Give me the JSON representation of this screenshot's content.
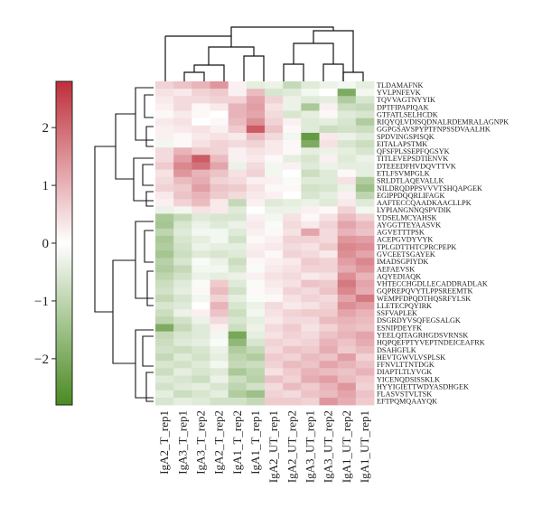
{
  "chart_data": {
    "type": "heatmap",
    "title": "",
    "xlabel": "",
    "ylabel": "",
    "columns": [
      "IgA2_T_rep1",
      "IgA3_T_rep1",
      "IgA3_T_rep2",
      "IgA2_T_rep2",
      "IgA1_T_rep2",
      "IgA1_T_rep1",
      "IgA2_UT_rep1",
      "IgA2_UT_rep2",
      "IgA3_UT_rep1",
      "IgA3_UT_rep2",
      "IgA1_UT_rep2",
      "IgA1_UT_rep1"
    ],
    "rows": [
      "TLDAMAFNK",
      "YVLPNFEVK",
      "TQVVAGTNYYIK",
      "DPTFIPAPIQAK",
      "GTFATLSELHCDK",
      "RIQYQLVDISQDNALRDEMRALAGNPK",
      "GGPGSAVSPYPTFNPSSDVAALHK",
      "SPDVINGSPISQK",
      "EITALAPSTMK",
      "QFSFPLSSEPFQGSYK",
      "TITLEVEPSDTIENVK",
      "DTEEEDFHVDQVTTVK",
      "ETLFSVMPGLK",
      "SRLDTLAQEVALLK",
      "NILDRQDPPSVVVTSHQAPGEK",
      "EGIPPDQQRLIFAGK",
      "AAFTECCQAADKAACLLPK",
      "LYPIANGNNQSPVDIK",
      "YDSELMCYAHSK",
      "AYGGTTEYAASVK",
      "AGVETTTPSK",
      "ACEPGVDYVYK",
      "TPLGDTTHTCPRCPEPK",
      "GVCEETSGAYEK",
      "IMADSGPIYDK",
      "AEFAEVSK",
      "AQYEDIAQK",
      "VHTECCHGDLLECADDRADLAK",
      "GQPREPQVYTLPPSREEMTK",
      "WEMPFDPQDTHQSRFYLSK",
      "LLETECPQYIRK",
      "SSFVAPLEK",
      "DSGRDYVSQFEGSALGK",
      "ESNIPDEYFK",
      "YEELQITAGRHGDSVRNSK",
      "HQPQEFPTYVEPTNDEICEAFRK",
      "DSAHGFLK",
      "HEVTGWVLVSPLSK",
      "FFNVLTTNTDGK",
      "DIAPTLTLYVGK",
      "YICENQDSISSKLK",
      "HYYIGIETTWDYASDHGEK",
      "FLASVSTVLTSK",
      "EFTPQMQAAYQK"
    ],
    "color_scale": {
      "min": -2.8,
      "max": 2.8,
      "low_color": "#4a8a22",
      "mid_color": "#ffffff",
      "high_color": "#be2e3a",
      "ticks": [
        -2,
        -1,
        0,
        1,
        2
      ]
    },
    "values": [
      [
        0.6,
        0.8,
        1.0,
        1.4,
        0.2,
        -0.4,
        -0.3,
        -0.9,
        -0.5,
        -0.3,
        -0.2,
        -0.4
      ],
      [
        0.4,
        0.3,
        0.6,
        0.7,
        0.2,
        0.9,
        -0.6,
        -0.5,
        -0.2,
        0.0,
        -2.0,
        -0.2
      ],
      [
        0.3,
        0.5,
        0.5,
        0.6,
        0.6,
        1.2,
        0.6,
        -0.3,
        -0.5,
        -0.4,
        -1.2,
        -0.6
      ],
      [
        0.2,
        0.5,
        0.1,
        0.3,
        1.0,
        1.3,
        0.4,
        -0.3,
        -1.3,
        0.2,
        -0.8,
        -0.9
      ],
      [
        0.1,
        0.3,
        0.1,
        0.0,
        1.0,
        1.2,
        0.5,
        -0.6,
        -0.4,
        0.1,
        -0.5,
        -0.6
      ],
      [
        0.3,
        0.4,
        0.0,
        0.1,
        0.9,
        1.5,
        0.6,
        0.2,
        -0.5,
        -0.4,
        -0.6,
        -1.2
      ],
      [
        0.2,
        0.3,
        0.4,
        0.2,
        0.7,
        2.2,
        0.8,
        0.1,
        -0.5,
        -0.8,
        -0.7,
        -0.8
      ],
      [
        0.2,
        0.1,
        0.3,
        0.4,
        0.3,
        0.9,
        0.5,
        -0.2,
        -2.4,
        0.3,
        -0.3,
        -0.5
      ],
      [
        -0.2,
        0.1,
        0.4,
        0.6,
        0.5,
        0.6,
        0.3,
        0.1,
        -2.0,
        0.4,
        -0.6,
        -0.8
      ],
      [
        0.5,
        1.0,
        0.7,
        0.6,
        0.2,
        0.4,
        0.3,
        0.1,
        -0.4,
        -0.3,
        -0.4,
        -0.6
      ],
      [
        0.5,
        1.3,
        2.2,
        0.9,
        0.2,
        0.3,
        0.1,
        -0.4,
        -0.6,
        0.2,
        -0.5,
        -0.3
      ],
      [
        0.7,
        1.6,
        1.9,
        1.2,
        -0.3,
        0.5,
        -0.2,
        0.2,
        -0.5,
        -0.3,
        -0.4,
        -0.4
      ],
      [
        0.4,
        1.4,
        1.0,
        0.8,
        0.4,
        0.6,
        -0.2,
        0.0,
        -0.8,
        -0.5,
        0.1,
        -0.4
      ],
      [
        0.5,
        0.9,
        1.1,
        0.6,
        0.5,
        0.2,
        0.2,
        -0.1,
        -0.5,
        -0.5,
        0.4,
        -1.2
      ],
      [
        0.6,
        0.7,
        1.3,
        0.8,
        0.7,
        0.4,
        0.1,
        0.1,
        -0.7,
        -0.6,
        -0.3,
        -1.5
      ],
      [
        0.3,
        0.8,
        1.0,
        0.7,
        0.5,
        0.3,
        0.2,
        0.0,
        -0.6,
        -0.4,
        0.2,
        -1.0
      ],
      [
        0.2,
        0.6,
        0.9,
        0.3,
        -0.9,
        0.2,
        -0.5,
        -0.4,
        -0.3,
        -0.5,
        0.3,
        -0.5
      ],
      [
        -0.3,
        -0.2,
        0.4,
        0.3,
        -0.5,
        0.0,
        -0.3,
        -0.3,
        0.2,
        0.1,
        0.6,
        -0.2
      ],
      [
        -1.3,
        -0.9,
        -0.5,
        -0.6,
        -0.6,
        0.2,
        -0.2,
        0.4,
        0.1,
        0.4,
        0.9,
        0.6
      ],
      [
        -1.4,
        -0.6,
        -0.3,
        -0.5,
        -0.3,
        0.3,
        -0.1,
        0.5,
        0.3,
        0.6,
        1.2,
        0.9
      ],
      [
        -1.0,
        -0.5,
        -0.2,
        -0.2,
        -0.5,
        0.2,
        0.1,
        0.4,
        1.2,
        0.5,
        1.0,
        0.8
      ],
      [
        -1.3,
        -0.6,
        -0.4,
        -0.2,
        -0.7,
        0.1,
        0.2,
        0.6,
        0.6,
        0.5,
        1.4,
        1.3
      ],
      [
        -1.2,
        -0.7,
        -0.3,
        -0.4,
        -0.4,
        0.2,
        0.3,
        0.5,
        0.4,
        0.7,
        1.6,
        1.5
      ],
      [
        -1.4,
        -0.8,
        -0.5,
        -0.6,
        -0.5,
        0.3,
        0.1,
        0.6,
        0.5,
        0.3,
        1.5,
        1.2
      ],
      [
        -1.1,
        -0.6,
        -0.1,
        -0.3,
        -0.8,
        0.1,
        0.2,
        0.3,
        0.7,
        0.6,
        1.3,
        1.6
      ],
      [
        -1.2,
        -0.9,
        -0.2,
        -0.2,
        -0.6,
        -0.1,
        0.3,
        0.4,
        0.6,
        0.6,
        1.1,
        1.4
      ],
      [
        -1.0,
        -0.7,
        -0.3,
        -0.4,
        -0.3,
        0.2,
        0.4,
        0.5,
        0.3,
        0.4,
        1.5,
        1.0
      ],
      [
        -0.8,
        -0.5,
        -0.1,
        0.7,
        -0.5,
        -0.1,
        0.3,
        0.4,
        0.8,
        0.7,
        1.8,
        1.2
      ],
      [
        -0.7,
        -0.4,
        0.1,
        0.9,
        -0.7,
        0.1,
        0.2,
        0.6,
        0.5,
        0.8,
        1.6,
        1.1
      ],
      [
        -0.9,
        -0.6,
        -0.2,
        0.6,
        -0.4,
        -0.1,
        0.1,
        0.4,
        0.6,
        0.5,
        1.2,
        1.8
      ],
      [
        -0.6,
        -0.5,
        0.0,
        1.0,
        -0.6,
        -0.3,
        0.5,
        0.3,
        0.4,
        0.6,
        1.5,
        1.3
      ],
      [
        -0.8,
        -0.3,
        0.2,
        0.8,
        -0.8,
        -0.2,
        0.4,
        0.6,
        0.7,
        0.7,
        1.2,
        1.0
      ],
      [
        -1.0,
        -0.7,
        -0.3,
        0.5,
        -0.6,
        -0.4,
        0.3,
        0.5,
        0.5,
        0.9,
        1.0,
        0.9
      ],
      [
        -2.0,
        -0.9,
        -0.5,
        0.2,
        -0.8,
        -0.3,
        0.5,
        0.7,
        0.4,
        0.6,
        0.9,
        0.8
      ],
      [
        -0.9,
        -0.6,
        -0.5,
        -0.2,
        -2.1,
        -0.4,
        0.4,
        0.6,
        0.5,
        0.8,
        1.0,
        1.2
      ],
      [
        -0.8,
        -0.5,
        -0.4,
        -0.1,
        -1.7,
        -0.6,
        0.6,
        0.5,
        0.6,
        1.0,
        0.8,
        1.1
      ],
      [
        -0.7,
        -0.8,
        -0.6,
        -0.3,
        -1.2,
        -0.9,
        0.5,
        0.8,
        0.7,
        1.1,
        0.7,
        0.9
      ],
      [
        -0.9,
        -0.5,
        -0.7,
        -0.4,
        -1.0,
        -1.2,
        0.7,
        0.6,
        0.9,
        0.8,
        1.3,
        0.6
      ],
      [
        -0.6,
        -0.7,
        -0.5,
        -0.2,
        -0.9,
        -0.8,
        0.6,
        0.9,
        0.8,
        1.2,
        1.0,
        0.8
      ],
      [
        -0.8,
        -0.4,
        -0.6,
        -0.5,
        -1.3,
        -1.0,
        0.4,
        0.7,
        1.0,
        0.9,
        0.8,
        1.0
      ],
      [
        -0.5,
        -0.6,
        -0.8,
        -0.3,
        -0.8,
        -1.1,
        0.8,
        0.6,
        1.1,
        1.3,
        0.9,
        0.7
      ],
      [
        -0.7,
        -0.5,
        -0.4,
        -0.6,
        -1.0,
        -0.7,
        0.5,
        0.9,
        0.7,
        1.0,
        1.4,
        0.6
      ],
      [
        -0.4,
        -0.8,
        -0.6,
        -0.4,
        -1.2,
        -1.5,
        0.6,
        0.5,
        0.8,
        0.9,
        1.2,
        0.8
      ],
      [
        -0.6,
        -0.4,
        -0.5,
        -0.7,
        -0.7,
        -0.9,
        0.7,
        0.7,
        0.6,
        1.4,
        1.1,
        0.7
      ]
    ]
  }
}
